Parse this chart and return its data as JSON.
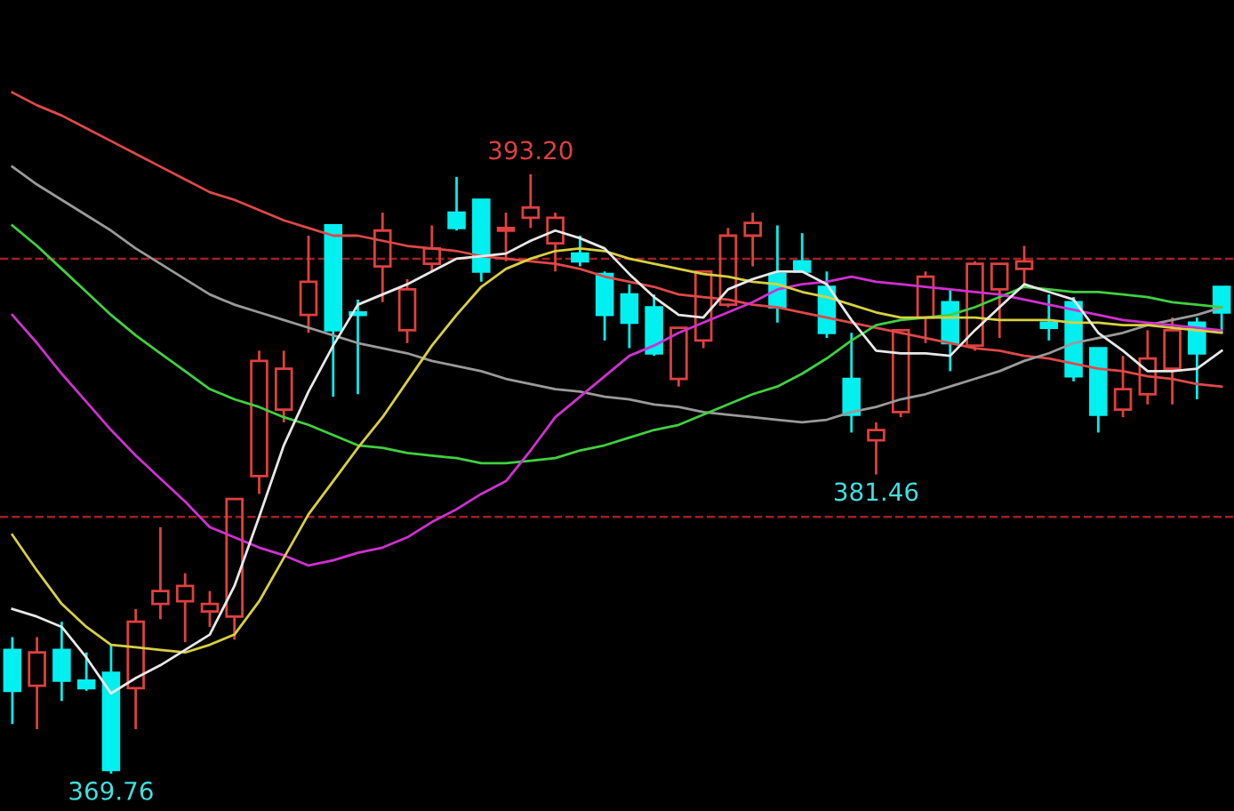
{
  "chart_data": {
    "type": "candlestick",
    "categories": [
      null,
      null,
      null,
      null,
      null,
      null,
      null,
      null,
      null,
      null,
      null,
      null,
      null,
      null,
      null,
      null,
      null,
      null,
      null,
      null,
      null,
      null,
      null,
      null,
      null,
      null,
      null,
      null,
      null,
      null,
      null,
      null,
      null,
      null,
      null,
      null,
      null,
      null,
      null,
      null,
      null,
      null,
      null,
      null,
      null,
      null,
      null,
      null,
      null,
      null
    ],
    "ohlc": [
      [
        374.6,
        375.1,
        371.7,
        373.0
      ],
      [
        373.2,
        375.1,
        371.5,
        374.5
      ],
      [
        374.6,
        375.7,
        372.6,
        373.4
      ],
      [
        373.4,
        374.5,
        373.0,
        373.1
      ],
      [
        373.7,
        374.8,
        369.76,
        369.9
      ],
      [
        373.1,
        376.2,
        371.5,
        375.7
      ],
      [
        376.4,
        379.4,
        375.8,
        376.9
      ],
      [
        376.5,
        377.6,
        374.9,
        377.1
      ],
      [
        376.1,
        376.9,
        375.5,
        376.4
      ],
      [
        375.9,
        380.5,
        375.0,
        380.5
      ],
      [
        381.4,
        386.3,
        380.7,
        385.9
      ],
      [
        384.0,
        386.3,
        383.5,
        385.6
      ],
      [
        387.7,
        390.8,
        387.0,
        389.0
      ],
      [
        391.2,
        391.2,
        384.5,
        387.1
      ],
      [
        387.8,
        388.3,
        384.6,
        387.7
      ],
      [
        389.6,
        391.7,
        388.2,
        391.0
      ],
      [
        387.1,
        389.1,
        386.6,
        388.7
      ],
      [
        389.7,
        391.2,
        389.4,
        390.3
      ],
      [
        391.7,
        393.1,
        391.0,
        391.1
      ],
      [
        392.2,
        392.2,
        389.0,
        389.4
      ],
      [
        391.0,
        391.7,
        389.8,
        391.1
      ],
      [
        391.5,
        393.2,
        391.1,
        391.9
      ],
      [
        390.5,
        391.7,
        389.4,
        391.5
      ],
      [
        390.1,
        390.8,
        389.6,
        389.8
      ],
      [
        389.3,
        389.4,
        386.7,
        387.7
      ],
      [
        388.5,
        388.9,
        386.4,
        387.4
      ],
      [
        388.0,
        388.5,
        386.1,
        386.2
      ],
      [
        385.2,
        387.2,
        384.9,
        387.2
      ],
      [
        386.7,
        389.4,
        386.4,
        389.4
      ],
      [
        388.1,
        391.1,
        388.0,
        390.8
      ],
      [
        390.8,
        391.7,
        389.6,
        391.3
      ],
      [
        389.3,
        391.2,
        387.4,
        388.0
      ],
      [
        389.8,
        390.9,
        389.4,
        389.4
      ],
      [
        388.8,
        389.4,
        386.8,
        387.0
      ],
      [
        385.2,
        387.0,
        383.1,
        383.8
      ],
      [
        382.8,
        383.5,
        381.46,
        383.2
      ],
      [
        383.9,
        387.1,
        383.7,
        387.1
      ],
      [
        387.6,
        389.4,
        386.6,
        389.2
      ],
      [
        388.2,
        388.7,
        385.5,
        386.6
      ],
      [
        386.5,
        389.8,
        386.3,
        389.7
      ],
      [
        388.7,
        389.7,
        386.8,
        389.7
      ],
      [
        389.5,
        390.4,
        388.9,
        389.8
      ],
      [
        387.4,
        388.5,
        386.7,
        387.2
      ],
      [
        388.2,
        388.4,
        385.1,
        385.3
      ],
      [
        386.4,
        386.4,
        383.1,
        383.8
      ],
      [
        384.0,
        386.1,
        383.7,
        384.8
      ],
      [
        384.6,
        387.1,
        384.2,
        386.0
      ],
      [
        385.6,
        387.6,
        384.2,
        387.1
      ],
      [
        387.4,
        387.6,
        384.4,
        386.2
      ],
      [
        388.8,
        388.8,
        387.0,
        387.8
      ]
    ],
    "colors": [
      "#00f0f0",
      "#e04040",
      "#00f0f0",
      "#00f0f0",
      "#00f0f0",
      "#e04040",
      "#e04040",
      "#e04040",
      "#e04040",
      "#e04040",
      "#e04040",
      "#e04040",
      "#e04040",
      "#00f0f0",
      "#00f0f0",
      "#e04040",
      "#e04040",
      "#e04040",
      "#00f0f0",
      "#00f0f0",
      "#e04040",
      "#e04040",
      "#e04040",
      "#00f0f0",
      "#00f0f0",
      "#00f0f0",
      "#00f0f0",
      "#e04040",
      "#e04040",
      "#e04040",
      "#e04040",
      "#00f0f0",
      "#00f0f0",
      "#00f0f0",
      "#00f0f0",
      "#e04040",
      "#e04040",
      "#e04040",
      "#00f0f0",
      "#e04040",
      "#e04040",
      "#e04040",
      "#00f0f0",
      "#00f0f0",
      "#00f0f0",
      "#e04040",
      "#e04040",
      "#e04040",
      "#00f0f0",
      "#00f0f0"
    ],
    "series": [
      {
        "type": "line",
        "color": "#e04848",
        "values": [
          396.4,
          395.9,
          395.5,
          395.0,
          394.5,
          394.0,
          393.5,
          393.0,
          392.5,
          392.2,
          391.8,
          391.4,
          391.1,
          390.8,
          390.8,
          390.6,
          390.4,
          390.3,
          390.2,
          390.0,
          389.9,
          389.8,
          389.7,
          389.5,
          389.2,
          389.0,
          388.8,
          388.5,
          388.4,
          388.3,
          388.1,
          388.0,
          387.8,
          387.6,
          387.4,
          387.2,
          387.0,
          386.8,
          386.6,
          386.4,
          386.3,
          386.1,
          386.0,
          385.8,
          385.6,
          385.5,
          385.3,
          385.2,
          385.0,
          384.9
        ]
      },
      {
        "type": "line",
        "color": "#9a9a9a",
        "values": [
          393.5,
          392.8,
          392.2,
          391.6,
          391.0,
          390.3,
          389.7,
          389.1,
          388.5,
          388.1,
          387.8,
          387.5,
          387.2,
          386.9,
          386.6,
          386.4,
          386.2,
          385.9,
          385.7,
          385.5,
          385.2,
          385.0,
          384.8,
          384.7,
          384.5,
          384.4,
          384.2,
          384.1,
          383.9,
          383.8,
          383.7,
          383.6,
          383.5,
          383.6,
          383.9,
          384.1,
          384.4,
          384.6,
          384.9,
          385.2,
          385.5,
          385.9,
          386.2,
          386.6,
          386.8,
          387.0,
          387.3,
          387.5,
          387.7,
          388.0
        ]
      },
      {
        "type": "line",
        "color": "#40d040",
        "values": [
          391.2,
          390.4,
          389.5,
          388.6,
          387.7,
          386.9,
          386.2,
          385.5,
          384.8,
          384.4,
          384.1,
          383.7,
          383.4,
          383.0,
          382.6,
          382.5,
          382.3,
          382.2,
          382.1,
          381.9,
          381.9,
          382.0,
          382.1,
          382.4,
          382.6,
          382.9,
          383.2,
          383.4,
          383.8,
          384.2,
          384.6,
          384.9,
          385.4,
          386.0,
          386.7,
          387.3,
          387.5,
          387.6,
          387.7,
          388.0,
          388.4,
          388.8,
          388.7,
          388.6,
          388.6,
          388.5,
          388.4,
          388.2,
          388.1,
          388.0
        ]
      },
      {
        "type": "line",
        "color": "#d030d0",
        "values": [
          387.7,
          386.6,
          385.4,
          384.3,
          383.2,
          382.2,
          381.3,
          380.4,
          379.4,
          379.0,
          378.6,
          378.3,
          377.9,
          378.1,
          378.4,
          378.6,
          379.0,
          379.6,
          380.1,
          380.7,
          381.2,
          382.4,
          383.7,
          384.5,
          385.3,
          386.1,
          386.5,
          387.0,
          387.4,
          387.8,
          388.2,
          388.7,
          388.9,
          389.0,
          389.2,
          389.0,
          388.9,
          388.8,
          388.7,
          388.6,
          388.5,
          388.3,
          388.1,
          387.9,
          387.7,
          387.5,
          387.4,
          387.3,
          387.2,
          387.1
        ]
      },
      {
        "type": "line",
        "color": "#d8d040",
        "values": [
          379.1,
          377.7,
          376.4,
          375.5,
          374.8,
          374.7,
          374.6,
          374.5,
          374.8,
          375.2,
          376.5,
          378.2,
          379.9,
          381.2,
          382.5,
          383.7,
          385.1,
          386.5,
          387.7,
          388.8,
          389.5,
          389.9,
          390.2,
          390.3,
          390.2,
          389.9,
          389.7,
          389.5,
          389.3,
          389.2,
          389.0,
          388.9,
          388.6,
          388.4,
          388.1,
          387.8,
          387.6,
          387.6,
          387.6,
          387.6,
          387.5,
          387.5,
          387.5,
          387.4,
          387.4,
          387.3,
          387.3,
          387.2,
          387.1,
          387.0
        ]
      },
      {
        "type": "line",
        "color": "#e8e8e8",
        "values": [
          376.2,
          375.9,
          375.5,
          374.3,
          372.9,
          373.5,
          374.0,
          374.6,
          375.2,
          377.1,
          379.8,
          382.6,
          384.7,
          386.5,
          388.1,
          388.5,
          388.9,
          389.4,
          389.9,
          390.0,
          390.1,
          390.6,
          391.0,
          390.7,
          390.3,
          389.3,
          388.4,
          387.7,
          387.6,
          388.7,
          389.1,
          389.4,
          389.4,
          388.9,
          387.5,
          386.3,
          386.2,
          386.2,
          386.1,
          387.1,
          388.0,
          388.9,
          388.6,
          388.3,
          387.0,
          386.3,
          385.5,
          385.5,
          385.6,
          386.3
        ]
      }
    ],
    "ref_lines": [
      {
        "axis": "y",
        "value": 389.9,
        "color": "#a02020",
        "line_style": "dashed"
      },
      {
        "axis": "y",
        "value": 379.8,
        "color": "#a02020",
        "line_style": "dashed"
      }
    ],
    "annotations": [
      {
        "text": "393.20",
        "y": 393.2
      },
      {
        "text": "381.46",
        "y": 381.46
      },
      {
        "text": "369.76",
        "y": 369.76
      }
    ],
    "legend": false
  }
}
